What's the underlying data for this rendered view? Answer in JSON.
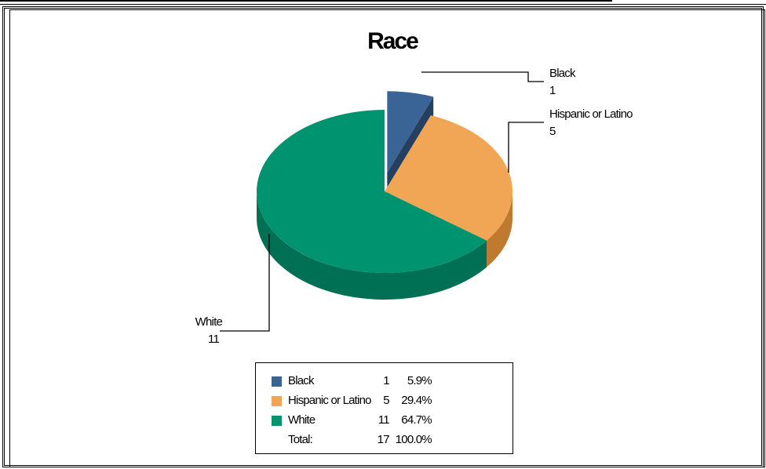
{
  "chart_data": {
    "type": "pie",
    "title": "Race",
    "series": [
      {
        "name": "Black",
        "value": 1,
        "percent": "5.9%",
        "color": "#3a6496",
        "dark": "#243f60",
        "exploded": true
      },
      {
        "name": "Hispanic or Latino",
        "value": 5,
        "percent": "29.4%",
        "color": "#f0a655",
        "dark": "#c07a30"
      },
      {
        "name": "White",
        "value": 11,
        "percent": "64.7%",
        "color": "#00936f",
        "dark": "#007055"
      }
    ],
    "total_label": "Total:",
    "total_value": "17",
    "total_percent": "100.0%"
  }
}
